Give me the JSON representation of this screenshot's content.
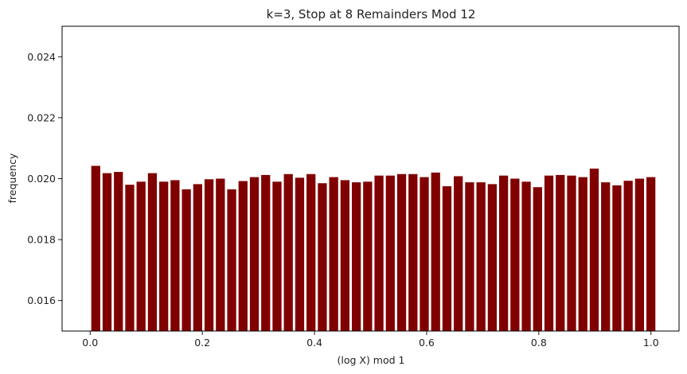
{
  "chart_data": {
    "type": "bar",
    "title": "k=3, Stop at 8 Remainders Mod 12",
    "xlabel": "(log X) mod 1",
    "ylabel": "frequency",
    "xlim": [
      -0.05,
      1.05
    ],
    "ylim": [
      0.015,
      0.025
    ],
    "xticks": [
      0.0,
      0.2,
      0.4,
      0.6,
      0.8,
      1.0
    ],
    "xtick_labels": [
      "0.0",
      "0.2",
      "0.4",
      "0.6",
      "0.8",
      "1.0"
    ],
    "yticks": [
      0.016,
      0.018,
      0.02,
      0.022,
      0.024
    ],
    "ytick_labels": [
      "0.016",
      "0.018",
      "0.020",
      "0.022",
      "0.024"
    ],
    "bar_color": "#800000",
    "bar_width": 0.016,
    "grid": false,
    "x": [
      0.01,
      0.0302,
      0.0504,
      0.0706,
      0.0908,
      0.111,
      0.1312,
      0.1514,
      0.1716,
      0.1918,
      0.212,
      0.2322,
      0.2524,
      0.2726,
      0.2928,
      0.313,
      0.3332,
      0.3534,
      0.3736,
      0.3938,
      0.414,
      0.4342,
      0.4544,
      0.4746,
      0.4948,
      0.515,
      0.5352,
      0.5554,
      0.5756,
      0.5958,
      0.616,
      0.6362,
      0.6564,
      0.6766,
      0.6968,
      0.717,
      0.7372,
      0.7574,
      0.7776,
      0.7978,
      0.818,
      0.8382,
      0.8584,
      0.8786,
      0.8988,
      0.919,
      0.9392,
      0.9594,
      0.9796,
      0.9998
    ],
    "values": [
      0.02042,
      0.02018,
      0.02022,
      0.0198,
      0.0199,
      0.02018,
      0.0199,
      0.01995,
      0.01965,
      0.01982,
      0.01998,
      0.02,
      0.01965,
      0.01992,
      0.02005,
      0.02012,
      0.0199,
      0.02015,
      0.02003,
      0.02015,
      0.01985,
      0.02005,
      0.01995,
      0.01988,
      0.0199,
      0.0201,
      0.0201,
      0.02015,
      0.02015,
      0.02005,
      0.0202,
      0.01975,
      0.02008,
      0.01988,
      0.01988,
      0.01982,
      0.0201,
      0.02,
      0.0199,
      0.01972,
      0.0201,
      0.02012,
      0.0201,
      0.02005,
      0.02033,
      0.01988,
      0.01978,
      0.01993,
      0.02,
      0.02005
    ]
  }
}
